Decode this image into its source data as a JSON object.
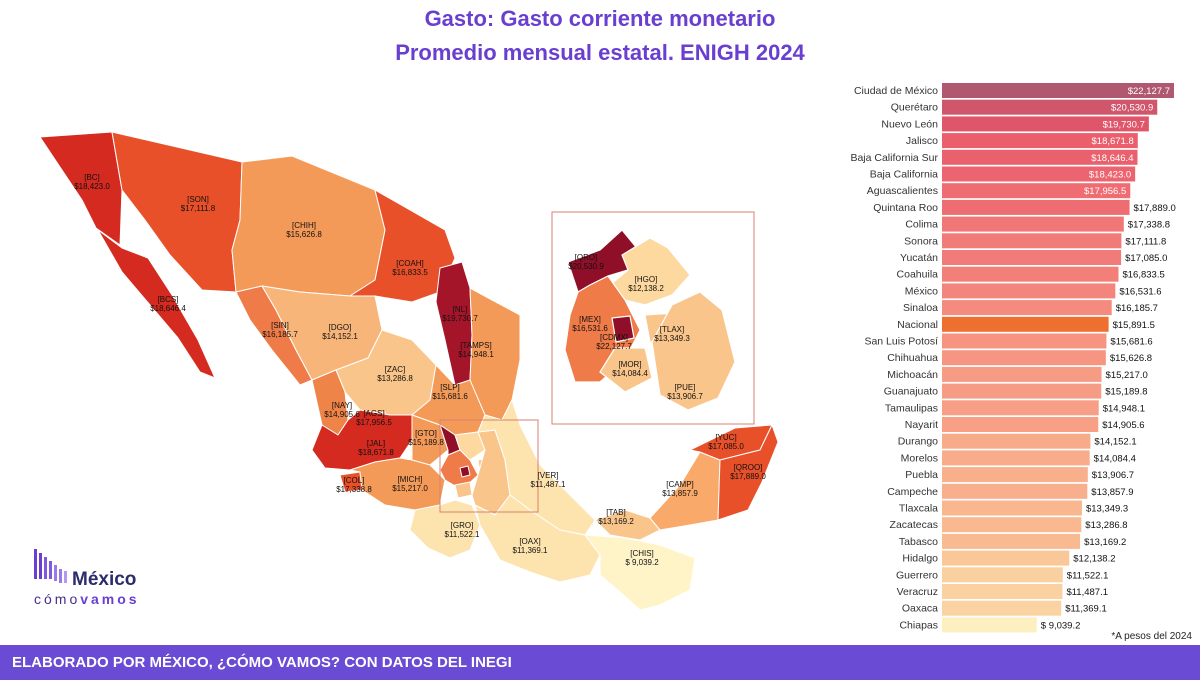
{
  "title_line1": "Gasto: Gasto corriente monetario",
  "title_line2": "Promedio mensual estatal. ENIGH 2024",
  "footer": "ELABORADO POR MÉXICO, ¿CÓMO VAMOS? CON DATOS DEL INEGI",
  "note": "*A pesos del 2024",
  "logo": {
    "word": "México",
    "sub_a": "cómo",
    "sub_b": "vamos"
  },
  "colors": {
    "highlight": "#ee7030",
    "accent": "#6a3fd0",
    "footer_bg": "#6a4bd3"
  },
  "map_labels": [
    {
      "code": "[BC]",
      "value": "$18,423.0"
    },
    {
      "code": "[SON]",
      "value": "$17,111.8"
    },
    {
      "code": "[CHIH]",
      "value": "$15,626.8"
    },
    {
      "code": "[BCS]",
      "value": "$18,646.4"
    },
    {
      "code": "[COAH]",
      "value": "$16,833.5"
    },
    {
      "code": "[SIN]",
      "value": "$16,185.7"
    },
    {
      "code": "[DGO]",
      "value": "$14,152.1"
    },
    {
      "code": "[NL]",
      "value": "$19,730.7"
    },
    {
      "code": "[TAMPS]",
      "value": "$14,948.1"
    },
    {
      "code": "[ZAC]",
      "value": "$13,286.8"
    },
    {
      "code": "[SLP]",
      "value": "$15,681.6"
    },
    {
      "code": "[NAY]",
      "value": "$14,905.6"
    },
    {
      "code": "[AGS]",
      "value": "$17,956.5"
    },
    {
      "code": "[JAL]",
      "value": "$18,671.8"
    },
    {
      "code": "[GTO]",
      "value": "$15,189.8"
    },
    {
      "code": "[COL]",
      "value": "$17,338.8"
    },
    {
      "code": "[MICH]",
      "value": "$15,217.0"
    },
    {
      "code": "[VER]",
      "value": "$11,487.1"
    },
    {
      "code": "[GRO]",
      "value": "$11,522.1"
    },
    {
      "code": "[OAX]",
      "value": "$11,369.1"
    },
    {
      "code": "[TAB]",
      "value": "$13,169.2"
    },
    {
      "code": "[CAMP]",
      "value": "$13,857.9"
    },
    {
      "code": "[YUC]",
      "value": "$17,085.0"
    },
    {
      "code": "[QROO]",
      "value": "$17,889.0"
    },
    {
      "code": "[CHIS]",
      "value": "$ 9,039.2"
    },
    {
      "code": "[QRO]",
      "value": "$20,530.9"
    },
    {
      "code": "[HGO]",
      "value": "$12,138.2"
    },
    {
      "code": "[MEX]",
      "value": "$16,531.6"
    },
    {
      "code": "[CDMX]",
      "value": "$22,127.7"
    },
    {
      "code": "[TLAX]",
      "value": "$13,349.3"
    },
    {
      "code": "[MOR]",
      "value": "$14,084.4"
    },
    {
      "code": "[PUE]",
      "value": "$13,906.7"
    }
  ],
  "chart_data": {
    "type": "bar",
    "orientation": "horizontal",
    "title": "Gasto: Gasto corriente monetario",
    "subtitle": "Promedio mensual estatal. ENIGH 2024",
    "categories": [
      "Ciudad de México",
      "Querétaro",
      "Nuevo León",
      "Jalisco",
      "Baja California Sur",
      "Baja California",
      "Aguascalientes",
      "Quintana Roo",
      "Colima",
      "Sonora",
      "Yucatán",
      "Coahuila",
      "México",
      "Sinaloa",
      "Nacional",
      "San Luis Potosí",
      "Chihuahua",
      "Michoacán",
      "Guanajuato",
      "Tamaulipas",
      "Nayarit",
      "Durango",
      "Morelos",
      "Puebla",
      "Campeche",
      "Tlaxcala",
      "Zacatecas",
      "Tabasco",
      "Hidalgo",
      "Guerrero",
      "Veracruz",
      "Oaxaca",
      "Chiapas"
    ],
    "values": [
      22127.7,
      20530.9,
      19730.7,
      18671.8,
      18646.4,
      18423.0,
      17956.5,
      17889.0,
      17338.8,
      17111.8,
      17085.0,
      16833.5,
      16531.6,
      16185.7,
      15891.5,
      15681.6,
      15626.8,
      15217.0,
      15189.8,
      14948.1,
      14905.6,
      14152.1,
      14084.4,
      13906.7,
      13857.9,
      13349.3,
      13286.8,
      13169.2,
      12138.2,
      11522.1,
      11487.1,
      11369.1,
      9039.2
    ],
    "value_labels": [
      "$22,127.7",
      "$20,530.9",
      "$19,730.7",
      "$18,671.8",
      "$18,646.4",
      "$18,423.0",
      "$17,956.5",
      "$17,889.0",
      "$17,338.8",
      "$17,111.8",
      "$17,085.0",
      "$16,833.5",
      "$16,531.6",
      "$16,185.7",
      "$15,891.5",
      "$15,681.6",
      "$15,626.8",
      "$15,217.0",
      "$15,189.8",
      "$14,948.1",
      "$14,905.6",
      "$14,152.1",
      "$14,084.4",
      "$13,906.7",
      "$13,857.9",
      "$13,349.3",
      "$13,286.8",
      "$13,169.2",
      "$12,138.2",
      "$11,522.1",
      "$11,487.1",
      "$11,369.1",
      "$ 9,039.2"
    ],
    "highlight": "Nacional",
    "grid": false
  }
}
